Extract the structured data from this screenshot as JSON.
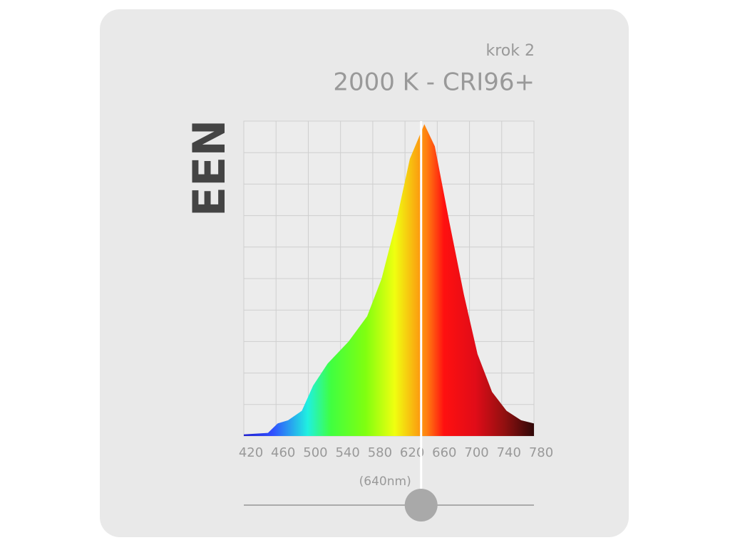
{
  "chart_data": {
    "type": "area",
    "subtitle": "krok 2",
    "title": "2000 K - CRI96+",
    "side_label": "EEN",
    "x": [
      420,
      450,
      462,
      475,
      492,
      506,
      524,
      550,
      573,
      591,
      609,
      626,
      644,
      657,
      675,
      693,
      710,
      728,
      746,
      764,
      780
    ],
    "values": [
      0.05,
      0.1,
      0.4,
      0.5,
      0.8,
      1.6,
      2.3,
      3.0,
      3.8,
      5.0,
      6.8,
      8.8,
      9.9,
      9.2,
      6.8,
      4.5,
      2.6,
      1.4,
      0.8,
      0.5,
      0.4
    ],
    "xlim": [
      420,
      780
    ],
    "xticks": [
      420,
      460,
      500,
      540,
      580,
      620,
      660,
      700,
      740,
      780
    ],
    "ylim": [
      0,
      10
    ],
    "yticks": [
      0,
      1,
      2,
      3,
      4,
      5,
      6,
      7,
      8,
      9,
      10
    ],
    "grid": true,
    "marker": {
      "value": 640,
      "label": "(640nm)"
    }
  }
}
